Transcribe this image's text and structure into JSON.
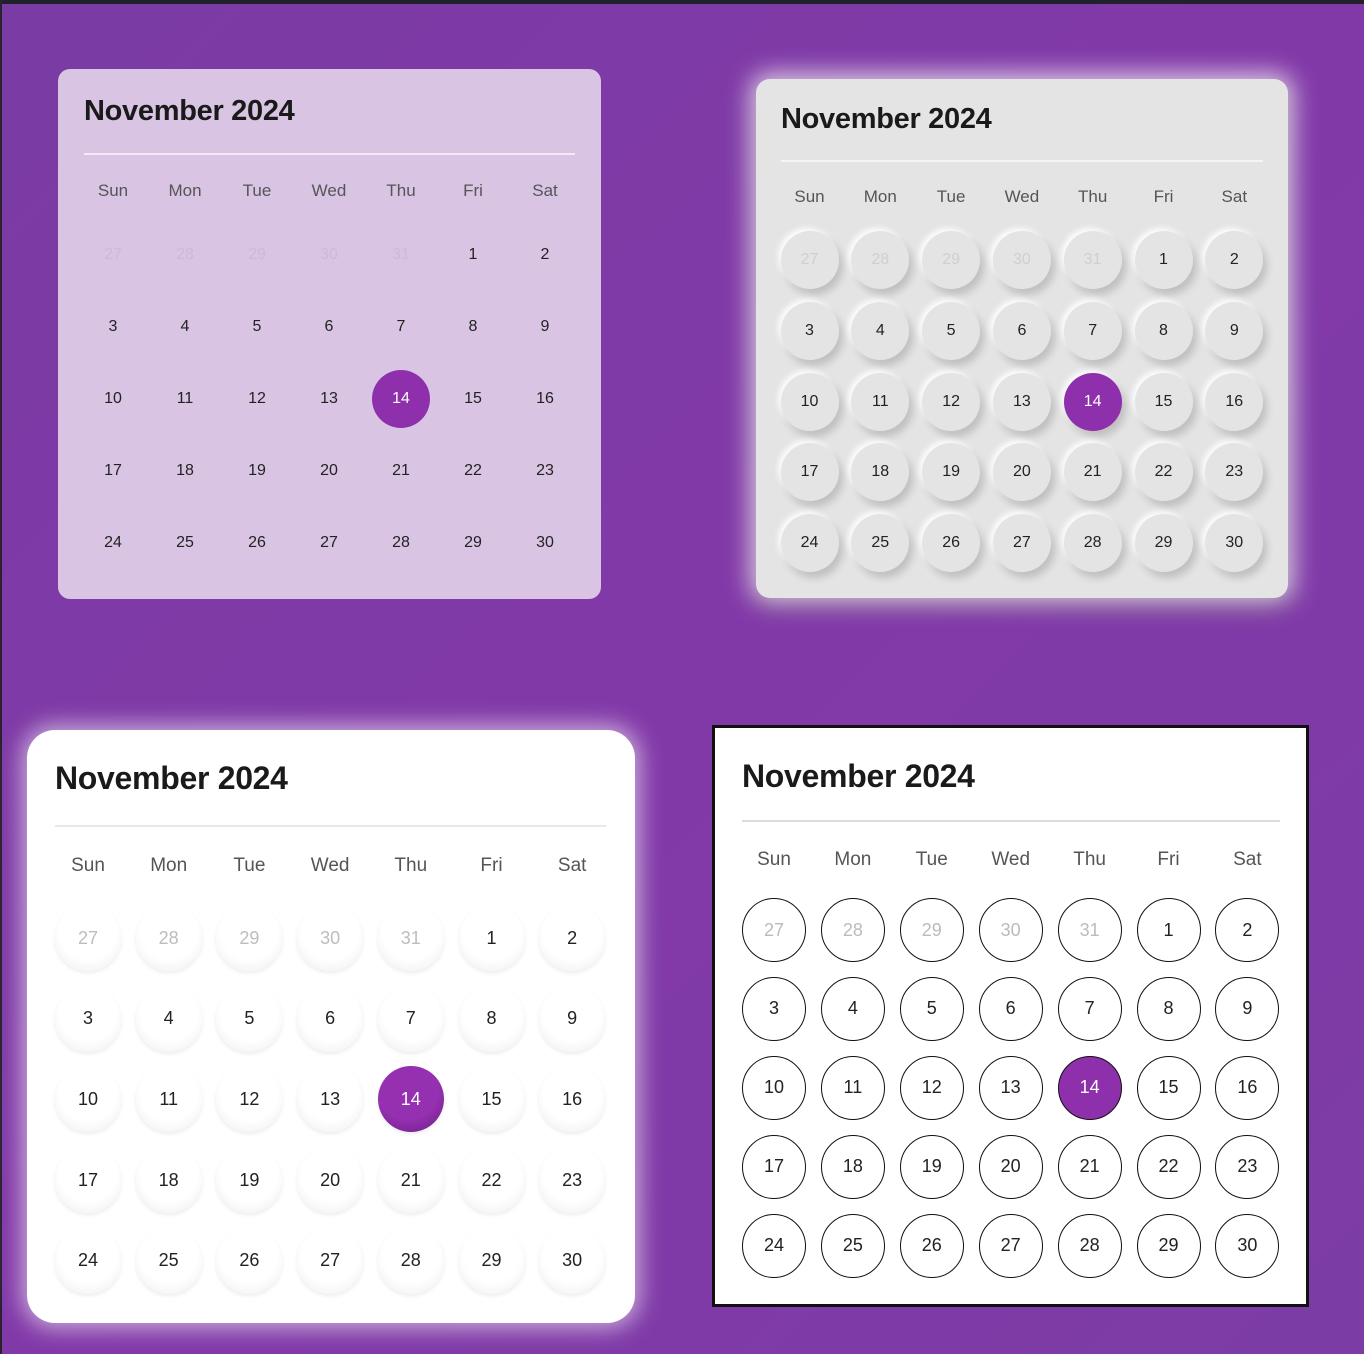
{
  "accent_color": "#8e2fab",
  "background_color": "#7d3aa6",
  "calendars": [
    {
      "variant": "glass",
      "title": "November 2024"
    },
    {
      "variant": "neumorphic",
      "title": "November 2024"
    },
    {
      "variant": "soft-white",
      "title": "November 2024"
    },
    {
      "variant": "outlined",
      "title": "November 2024"
    }
  ],
  "weekdays": [
    "Sun",
    "Mon",
    "Tue",
    "Wed",
    "Thu",
    "Fri",
    "Sat"
  ],
  "days": [
    {
      "label": "27",
      "muted": true
    },
    {
      "label": "28",
      "muted": true
    },
    {
      "label": "29",
      "muted": true
    },
    {
      "label": "30",
      "muted": true
    },
    {
      "label": "31",
      "muted": true
    },
    {
      "label": "1"
    },
    {
      "label": "2"
    },
    {
      "label": "3"
    },
    {
      "label": "4"
    },
    {
      "label": "5"
    },
    {
      "label": "6"
    },
    {
      "label": "7"
    },
    {
      "label": "8"
    },
    {
      "label": "9"
    },
    {
      "label": "10"
    },
    {
      "label": "11"
    },
    {
      "label": "12"
    },
    {
      "label": "13"
    },
    {
      "label": "14",
      "selected": true
    },
    {
      "label": "15"
    },
    {
      "label": "16"
    },
    {
      "label": "17"
    },
    {
      "label": "18"
    },
    {
      "label": "19"
    },
    {
      "label": "20"
    },
    {
      "label": "21"
    },
    {
      "label": "22"
    },
    {
      "label": "23"
    },
    {
      "label": "24"
    },
    {
      "label": "25"
    },
    {
      "label": "26"
    },
    {
      "label": "27"
    },
    {
      "label": "28"
    },
    {
      "label": "29"
    },
    {
      "label": "30"
    }
  ]
}
